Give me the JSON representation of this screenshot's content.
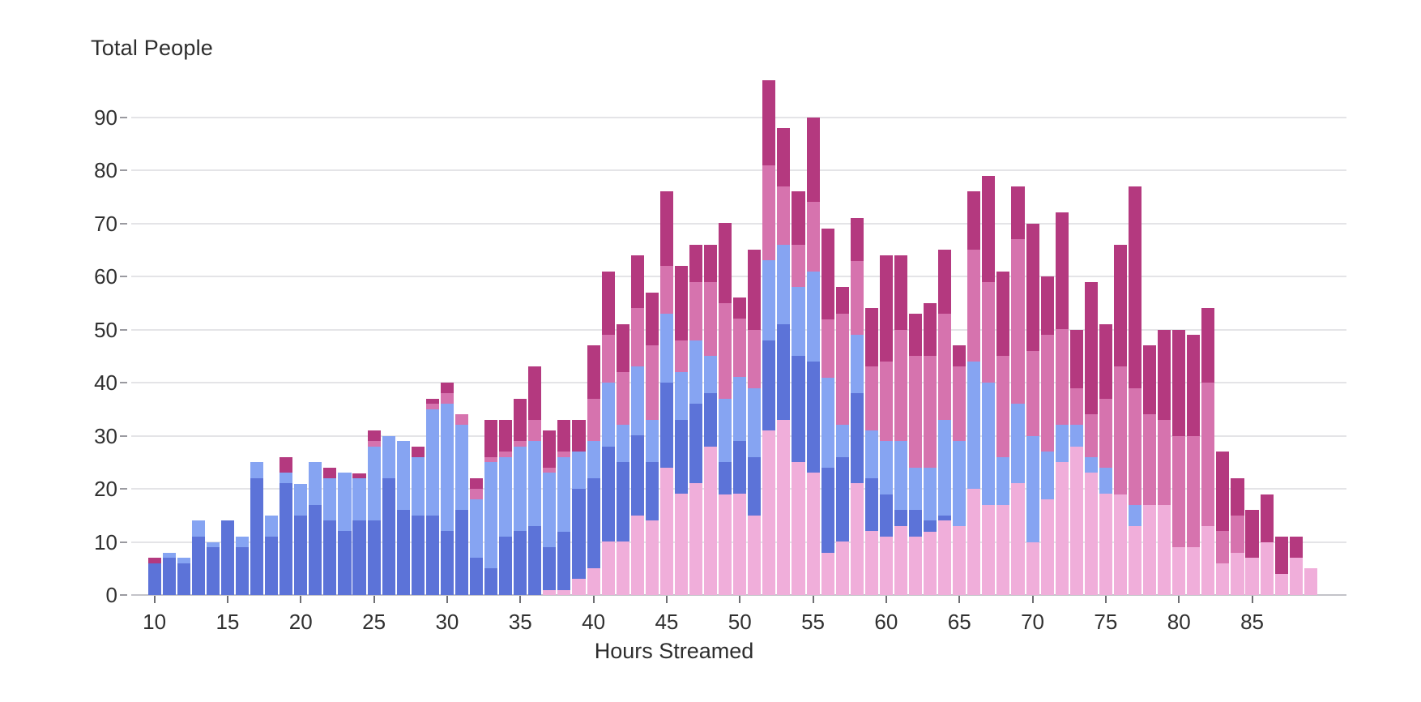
{
  "chart_data": {
    "type": "bar",
    "stacked": true,
    "title": "Total People",
    "xlabel": "Hours Streamed",
    "ylabel": "",
    "ylim": [
      0,
      100
    ],
    "yticks": [
      0,
      10,
      20,
      30,
      40,
      50,
      60,
      70,
      80,
      90
    ],
    "xticks": [
      10,
      15,
      20,
      25,
      30,
      35,
      40,
      45,
      50,
      55,
      60,
      65,
      70,
      75,
      80,
      85
    ],
    "grid": true,
    "legend": false,
    "x_start_hour": 10,
    "x": [
      10,
      11,
      12,
      13,
      14,
      15,
      16,
      17,
      18,
      19,
      20,
      21,
      22,
      23,
      24,
      25,
      26,
      27,
      28,
      29,
      30,
      31,
      32,
      33,
      34,
      35,
      36,
      37,
      38,
      39,
      40,
      41,
      42,
      43,
      44,
      45,
      46,
      47,
      48,
      49,
      50,
      51,
      52,
      53,
      54,
      55,
      56,
      57,
      58,
      59,
      60,
      61,
      62,
      63,
      64,
      65,
      66,
      67,
      68,
      69,
      70,
      71,
      72,
      73,
      74,
      75,
      76,
      77,
      78,
      79,
      80,
      81,
      82,
      83,
      84,
      85,
      86,
      87,
      88,
      89
    ],
    "series": [
      {
        "name": "pale-pink",
        "color": "#f0aeda",
        "values": [
          0,
          0,
          0,
          0,
          0,
          0,
          0,
          0,
          0,
          0,
          0,
          0,
          0,
          0,
          0,
          0,
          0,
          0,
          0,
          0,
          0,
          0,
          0,
          0,
          0,
          0,
          0,
          1,
          1,
          3,
          5,
          10,
          10,
          15,
          14,
          24,
          19,
          21,
          28,
          19,
          19,
          15,
          31,
          33,
          25,
          23,
          8,
          10,
          21,
          12,
          11,
          13,
          11,
          12,
          14,
          13,
          20,
          17,
          17,
          21,
          10,
          18,
          25,
          28,
          23,
          19,
          19,
          13,
          17,
          17,
          9,
          9,
          13,
          6,
          8,
          7,
          10,
          4,
          7,
          5
        ]
      },
      {
        "name": "royal-blue",
        "color": "#5c73d8",
        "values": [
          6,
          7,
          6,
          11,
          9,
          14,
          9,
          22,
          11,
          21,
          15,
          17,
          14,
          12,
          14,
          14,
          22,
          16,
          15,
          15,
          12,
          16,
          7,
          5,
          11,
          12,
          13,
          8,
          11,
          17,
          17,
          18,
          15,
          15,
          11,
          16,
          14,
          15,
          10,
          6,
          10,
          11,
          17,
          18,
          20,
          21,
          16,
          16,
          17,
          10,
          8,
          3,
          5,
          2,
          1,
          0,
          0,
          0,
          0,
          0,
          0,
          0,
          0,
          0,
          0,
          0,
          0,
          0,
          0,
          0,
          0,
          0,
          0,
          0,
          0,
          0,
          0,
          0,
          0,
          0
        ]
      },
      {
        "name": "cornflower-blue",
        "color": "#86a4f2",
        "values": [
          0,
          1,
          1,
          3,
          1,
          0,
          2,
          3,
          4,
          2,
          6,
          8,
          8,
          11,
          8,
          14,
          8,
          13,
          11,
          20,
          24,
          16,
          11,
          20,
          15,
          16,
          16,
          14,
          14,
          7,
          7,
          12,
          7,
          13,
          8,
          13,
          9,
          12,
          7,
          12,
          12,
          13,
          15,
          15,
          13,
          17,
          17,
          6,
          11,
          9,
          10,
          13,
          8,
          10,
          18,
          16,
          24,
          23,
          9,
          15,
          20,
          9,
          7,
          4,
          3,
          5,
          0,
          4,
          0,
          0,
          0,
          0,
          0,
          0,
          0,
          0,
          0,
          0,
          0,
          0
        ]
      },
      {
        "name": "orchid",
        "color": "#d673ae",
        "values": [
          0,
          0,
          0,
          0,
          0,
          0,
          0,
          0,
          0,
          0,
          0,
          0,
          0,
          0,
          0,
          1,
          0,
          0,
          0,
          1,
          2,
          2,
          2,
          1,
          1,
          1,
          4,
          1,
          1,
          0,
          8,
          9,
          10,
          11,
          14,
          9,
          6,
          11,
          14,
          18,
          11,
          11,
          18,
          11,
          8,
          13,
          11,
          21,
          14,
          12,
          15,
          21,
          21,
          21,
          20,
          14,
          21,
          19,
          19,
          31,
          16,
          22,
          18,
          7,
          8,
          13,
          24,
          22,
          17,
          16,
          21,
          21,
          27,
          6,
          7,
          0,
          0,
          0,
          0,
          0
        ]
      },
      {
        "name": "magenta",
        "color": "#b4397f",
        "values": [
          1,
          0,
          0,
          0,
          0,
          0,
          0,
          0,
          0,
          3,
          0,
          0,
          2,
          0,
          1,
          2,
          0,
          0,
          2,
          1,
          2,
          0,
          2,
          7,
          6,
          8,
          10,
          7,
          6,
          6,
          10,
          12,
          9,
          10,
          10,
          14,
          14,
          7,
          7,
          15,
          4,
          15,
          16,
          11,
          10,
          16,
          17,
          5,
          8,
          11,
          20,
          14,
          8,
          10,
          12,
          4,
          11,
          20,
          16,
          10,
          24,
          11,
          22,
          11,
          25,
          14,
          23,
          38,
          13,
          17,
          20,
          19,
          14,
          15,
          7,
          9,
          9,
          7,
          4,
          0
        ]
      }
    ]
  },
  "style_colors": {
    "gridline": "#e4e4e7",
    "baseline": "#c3c3c9",
    "tick": "#6e6e72",
    "text": "#2d2d2d"
  }
}
